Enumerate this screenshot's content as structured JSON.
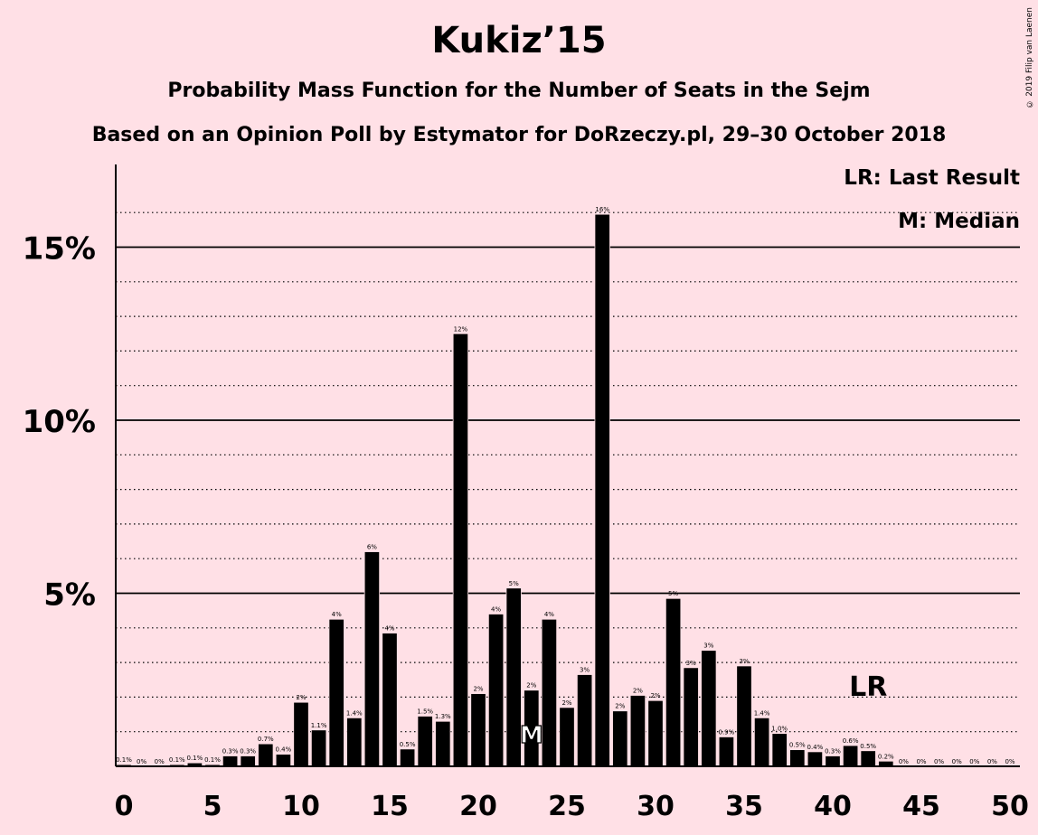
{
  "title": "Kukiz’15",
  "subtitle": "Probability Mass Function for the Number of Seats in the Sejm",
  "subtitle2": "Based on an Opinion Poll by Estymator for DoRzeczy.pl, 29–30 October 2018",
  "copyright": "© 2019 Filip van Laenen",
  "legend": {
    "last_result": "LR: Last Result",
    "median": "M: Median"
  },
  "colors": {
    "background": "#FFE0E6",
    "bar": "#000000"
  },
  "chart_data": {
    "type": "bar",
    "title": "Kukiz’15",
    "xlabel": "",
    "ylabel": "",
    "x": [
      0,
      1,
      2,
      3,
      4,
      5,
      6,
      7,
      8,
      9,
      10,
      11,
      12,
      13,
      14,
      15,
      16,
      17,
      18,
      19,
      20,
      21,
      22,
      23,
      24,
      25,
      26,
      27,
      28,
      29,
      30,
      31,
      32,
      33,
      34,
      35,
      36,
      37,
      38,
      39,
      40,
      41,
      42,
      43,
      44,
      45,
      46,
      47,
      48,
      49,
      50
    ],
    "values": [
      0.05,
      0,
      0,
      0.05,
      0.1,
      0.05,
      0.3,
      0.3,
      0.65,
      0.35,
      1.85,
      1.05,
      4.25,
      1.4,
      6.2,
      3.85,
      0.5,
      1.45,
      1.3,
      12.5,
      2.1,
      4.4,
      5.15,
      2.2,
      4.25,
      1.7,
      2.65,
      15.95,
      1.6,
      2.05,
      1.9,
      4.85,
      2.85,
      3.35,
      0.85,
      2.9,
      1.4,
      0.95,
      0.48,
      0.42,
      0.3,
      0.6,
      0.45,
      0.15,
      0,
      0,
      0,
      0,
      0,
      0,
      0
    ],
    "labels": [
      "0.1%",
      "0%",
      "0%",
      "0.1%",
      "0.1%",
      "0.1%",
      "0.3%",
      "0.3%",
      "0.7%",
      "0.4%",
      "2%",
      "1.1%",
      "4%",
      "1.4%",
      "6%",
      "4%",
      "0.5%",
      "1.5%",
      "1.3%",
      "12%",
      "2%",
      "4%",
      "5%",
      "2%",
      "4%",
      "2%",
      "3%",
      "16%",
      "2%",
      "2%",
      "2%",
      "5%",
      "3%",
      "3%",
      "0.9%",
      "3%",
      "1.4%",
      "1.0%",
      "0.5%",
      "0.4%",
      "0.3%",
      "0.6%",
      "0.5%",
      "0.2%",
      "0%",
      "0%",
      "0%",
      "0%",
      "0%",
      "0%",
      "0%"
    ],
    "xticks": [
      0,
      5,
      10,
      15,
      20,
      25,
      30,
      35,
      40,
      45,
      50
    ],
    "xtick_labels": [
      "0",
      "5",
      "10",
      "15",
      "20",
      "25",
      "30",
      "35",
      "40",
      "45",
      "50"
    ],
    "yticks": [
      5,
      10,
      15
    ],
    "ytick_labels": [
      "5%",
      "10%",
      "15%"
    ],
    "ylim": [
      0,
      17
    ],
    "median": 23,
    "median_label": "M",
    "last_result": 42,
    "last_result_label": "LR",
    "grid": true
  }
}
